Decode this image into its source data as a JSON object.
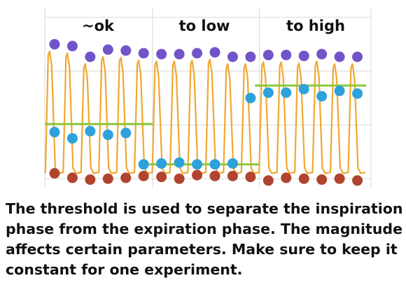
{
  "chart_data": {
    "type": "line",
    "x_count": 18,
    "panels": [
      {
        "label": "~ok",
        "peaks": [
          0,
          1,
          2,
          3,
          4,
          5
        ],
        "threshold": 2.55
      },
      {
        "label": "to low",
        "peaks": [
          6,
          7,
          8,
          9,
          10,
          11
        ],
        "threshold": 0.3
      },
      {
        "label": "to high",
        "peaks": [
          12,
          13,
          14,
          15,
          16,
          17
        ],
        "threshold": 4.7
      }
    ],
    "series": [
      {
        "role": "maxima",
        "color": "#7155c8",
        "values": [
          7.0,
          6.9,
          6.3,
          6.7,
          6.65,
          6.5,
          6.45,
          6.45,
          6.5,
          6.55,
          6.3,
          6.3,
          6.4,
          6.4,
          6.35,
          6.45,
          6.3,
          6.3
        ]
      },
      {
        "role": "threshold_points",
        "color": "#2ea1dc",
        "values": [
          2.1,
          1.75,
          2.15,
          1.95,
          2.05,
          0.3,
          0.35,
          0.4,
          0.3,
          0.3,
          0.35,
          4.0,
          4.3,
          4.3,
          4.5,
          4.1,
          4.4,
          4.25
        ]
      },
      {
        "role": "minima",
        "color": "#b0442f",
        "values": [
          -0.2,
          -0.45,
          -0.55,
          -0.5,
          -0.45,
          -0.35,
          -0.4,
          -0.5,
          -0.3,
          -0.35,
          -0.35,
          -0.4,
          -0.6,
          -0.45,
          -0.5,
          -0.55,
          -0.5,
          -0.6
        ]
      }
    ],
    "signal_color": "#f0a830",
    "threshold_color": "#8cc83c",
    "ylim": [
      -1,
      9
    ],
    "grid": true
  },
  "caption": {
    "lines": [
      "The threshold is used to separate the inspiration",
      "phase from the expiration phase. The magnitude",
      "affects certain parameters. Make sure to keep it",
      "constant for one experiment."
    ]
  }
}
